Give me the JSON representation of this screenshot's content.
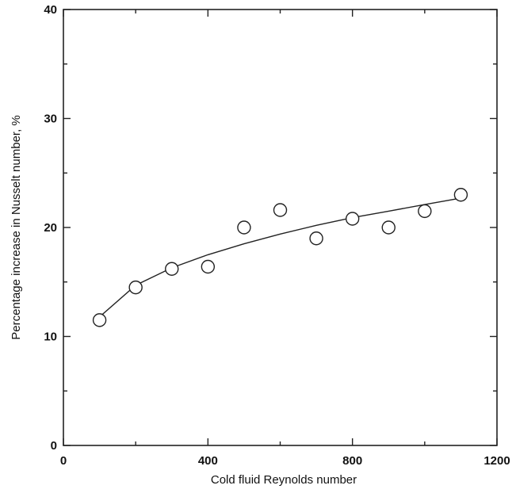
{
  "chart_data": {
    "type": "scatter",
    "title": "",
    "xlabel": "Cold fluid Reynolds number",
    "ylabel": "Percentage increase in Nusselt number, %",
    "xlim": [
      0,
      1200
    ],
    "ylim": [
      0,
      40
    ],
    "x_ticks": [
      0,
      400,
      800,
      1200
    ],
    "y_ticks": [
      0,
      10,
      20,
      30,
      40
    ],
    "x_tick_labels": [
      "0",
      "400",
      "800",
      "1200"
    ],
    "y_tick_labels": [
      "0",
      "10",
      "20",
      "30",
      "40"
    ],
    "grid": false,
    "legend": "none",
    "series": [
      {
        "marker": "open-circle",
        "x": [
          100,
          200,
          300,
          400,
          500,
          600,
          700,
          800,
          900,
          1000,
          1100
        ],
        "y": [
          11.5,
          14.5,
          16.2,
          16.4,
          20.0,
          21.6,
          19.0,
          20.8,
          20.0,
          21.5,
          23.0
        ]
      }
    ],
    "fit_curve": {
      "style": "solid",
      "x": [
        100,
        200,
        300,
        400,
        500,
        600,
        700,
        800,
        900,
        1000,
        1100
      ],
      "y": [
        11.8,
        14.7,
        16.3,
        17.5,
        18.5,
        19.4,
        20.2,
        20.9,
        21.5,
        22.1,
        22.7
      ]
    }
  }
}
